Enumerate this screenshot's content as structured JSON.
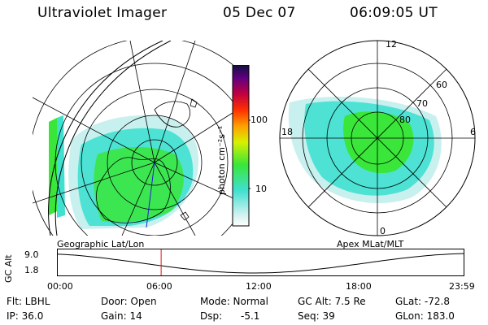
{
  "header": {
    "instrument": "Ultraviolet Imager",
    "date": "05 Dec 07",
    "time": "06:09:05 UT"
  },
  "geo_map": {
    "label": "Geographic Lat/Lon"
  },
  "apex_map": {
    "label": "Apex MLat/MLT",
    "mlt_labels": {
      "top": "12",
      "left": "18",
      "right": "6",
      "bottom": "0"
    },
    "lat_labels": [
      "60",
      "70",
      "80"
    ]
  },
  "colorbar": {
    "unit_label": "photon cm⁻²s⁻¹",
    "ticks": [
      "100",
      "10"
    ]
  },
  "altitude_plot": {
    "ylabel": "GC Alt",
    "yticks": [
      "9.0",
      "1.8"
    ],
    "xticks": [
      "00:00",
      "06:00",
      "12:00",
      "18:00",
      "23:59"
    ],
    "current_time_marker_hours": 6.15
  },
  "footer": {
    "filter": "Flt: LBHL",
    "door": "Door: Open",
    "mode": "Mode: Normal",
    "gc_alt": "GC Alt: 7.5 Re",
    "glat": "GLat: -72.8",
    "ip": "IP: 36.0",
    "gain": "Gain: 14",
    "dsp_label": "Dsp:",
    "dsp_value": "-5.1",
    "seq": "Seq: 39",
    "glon": "GLon: 183.0"
  },
  "colors": {
    "aurora_green": "#39e639",
    "aurora_cyan": "#3fe0d0",
    "aurora_light": "#c8f0ee",
    "marker_red": "#e01010"
  }
}
